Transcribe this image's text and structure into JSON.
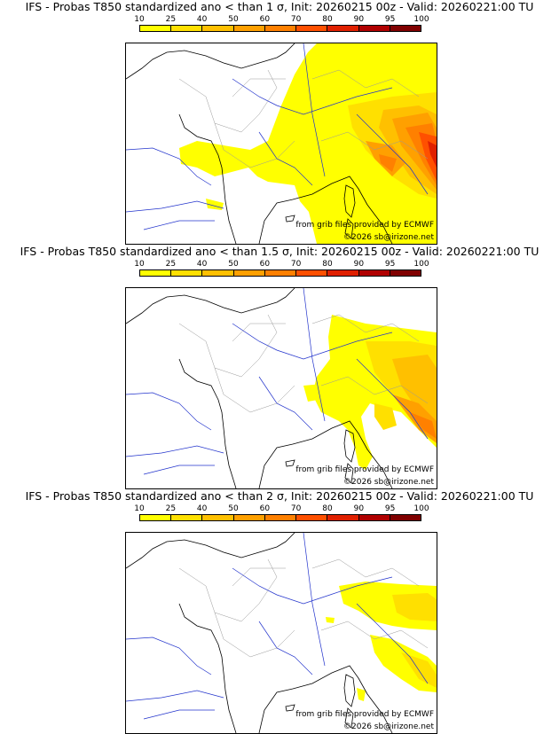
{
  "colorbar": {
    "ticks": [
      "10",
      "25",
      "40",
      "50",
      "60",
      "70",
      "80",
      "90",
      "95",
      "100"
    ],
    "colors": [
      "#ffff00",
      "#ffe000",
      "#ffc000",
      "#ffa000",
      "#ff8000",
      "#ff5000",
      "#e02000",
      "#b00000",
      "#800000"
    ]
  },
  "panels": [
    {
      "title": "IFS - Probas T850  standardized ano < than 1 σ, Init: 20260215 00z - Valid: 20260221:00 TU",
      "source": "from grib files provided by ECMWF",
      "copyright": "©2026 sb@irizone.net"
    },
    {
      "title": "IFS - Probas T850  standardized ano < than 1.5 σ, Init: 20260215 00z - Valid: 20260221:00 TU",
      "source": "from grib files provided by ECMWF",
      "copyright": "©2026 sb@irizone.net"
    },
    {
      "title": "IFS - Probas T850  standardized ano < than 2 σ, Init: 20260215 00z - Valid: 20260221:00 TU",
      "source": "from grib files provided by ECMWF",
      "copyright": "©2026 sb@irizone.net"
    }
  ]
}
